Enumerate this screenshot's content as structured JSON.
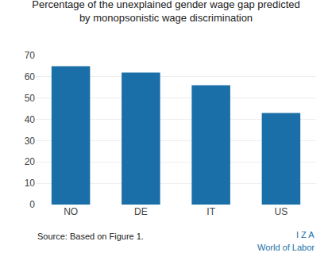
{
  "chart_data": {
    "type": "bar",
    "title": "Percentage of the unexplained gender wage gap predicted\nby monopsonistic wage discrimination",
    "categories": [
      "NO",
      "DE",
      "IT",
      "US"
    ],
    "values": [
      65,
      62,
      56,
      43
    ],
    "color": "#1a6fa8",
    "ylim": [
      0,
      70
    ],
    "yticks": [
      0,
      10,
      20,
      30,
      40,
      50,
      60,
      70
    ],
    "grid": true,
    "annotations": [
      "Source: Based on Figure 1.",
      "I Z A",
      "World of Labor"
    ]
  }
}
